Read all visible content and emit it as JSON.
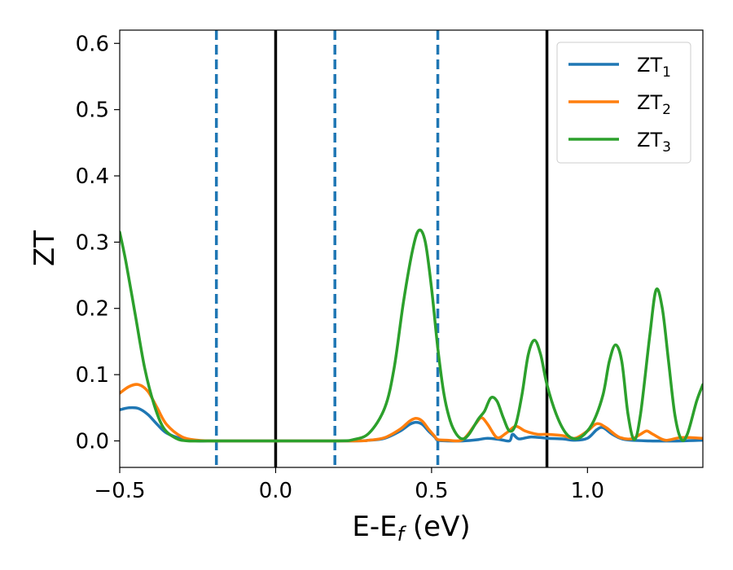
{
  "chart_data": {
    "type": "line",
    "title": "",
    "xlabel": "E-E",
    "xlabel_sub": "f",
    "xlabel_unit": " (eV)",
    "ylabel": "ZT",
    "xlim": [
      -0.5,
      1.37
    ],
    "ylim": [
      -0.04,
      0.62
    ],
    "x_ticks": [
      -0.5,
      0.0,
      0.5,
      1.0
    ],
    "x_tick_labels": [
      "−0.5",
      "0.0",
      "0.5",
      "1.0"
    ],
    "y_ticks": [
      0.0,
      0.1,
      0.2,
      0.3,
      0.4,
      0.5,
      0.6
    ],
    "y_tick_labels": [
      "0.0",
      "0.1",
      "0.2",
      "0.3",
      "0.4",
      "0.5",
      "0.6"
    ],
    "grid": false,
    "legend_position": "top-right",
    "vlines_solid": [
      0.0,
      0.87
    ],
    "vlines_dashed": [
      -0.19,
      0.19,
      0.52
    ],
    "series": [
      {
        "name": "ZT",
        "name_sub": "1",
        "color": "#1f77b4",
        "points": [
          [
            -0.5,
            0.047
          ],
          [
            -0.47,
            0.05
          ],
          [
            -0.44,
            0.049
          ],
          [
            -0.41,
            0.04
          ],
          [
            -0.38,
            0.025
          ],
          [
            -0.35,
            0.012
          ],
          [
            -0.3,
            0.003
          ],
          [
            -0.25,
            0.0
          ],
          [
            -0.2,
            0.0
          ],
          [
            0.0,
            0.0
          ],
          [
            0.25,
            0.0
          ],
          [
            0.3,
            0.001
          ],
          [
            0.35,
            0.004
          ],
          [
            0.4,
            0.015
          ],
          [
            0.43,
            0.025
          ],
          [
            0.45,
            0.028
          ],
          [
            0.47,
            0.025
          ],
          [
            0.49,
            0.015
          ],
          [
            0.51,
            0.006
          ],
          [
            0.52,
            0.001
          ],
          [
            0.55,
            0.0
          ],
          [
            0.6,
            0.0
          ],
          [
            0.65,
            0.002
          ],
          [
            0.68,
            0.004
          ],
          [
            0.72,
            0.002
          ],
          [
            0.75,
            0.0
          ],
          [
            0.76,
            0.01
          ],
          [
            0.78,
            0.003
          ],
          [
            0.82,
            0.006
          ],
          [
            0.87,
            0.004
          ],
          [
            0.92,
            0.003
          ],
          [
            0.96,
            0.001
          ],
          [
            1.0,
            0.004
          ],
          [
            1.03,
            0.017
          ],
          [
            1.05,
            0.02
          ],
          [
            1.08,
            0.01
          ],
          [
            1.12,
            0.002
          ],
          [
            1.2,
            0.0
          ],
          [
            1.3,
            0.0
          ],
          [
            1.37,
            0.001
          ]
        ]
      },
      {
        "name": "ZT",
        "name_sub": "2",
        "color": "#ff7f0e",
        "points": [
          [
            -0.5,
            0.072
          ],
          [
            -0.47,
            0.082
          ],
          [
            -0.44,
            0.085
          ],
          [
            -0.41,
            0.075
          ],
          [
            -0.38,
            0.05
          ],
          [
            -0.35,
            0.025
          ],
          [
            -0.3,
            0.006
          ],
          [
            -0.25,
            0.001
          ],
          [
            -0.2,
            0.0
          ],
          [
            0.0,
            0.0
          ],
          [
            0.25,
            0.0
          ],
          [
            0.3,
            0.001
          ],
          [
            0.35,
            0.005
          ],
          [
            0.4,
            0.018
          ],
          [
            0.43,
            0.03
          ],
          [
            0.45,
            0.034
          ],
          [
            0.47,
            0.03
          ],
          [
            0.49,
            0.018
          ],
          [
            0.51,
            0.007
          ],
          [
            0.52,
            0.002
          ],
          [
            0.55,
            0.001
          ],
          [
            0.6,
            0.002
          ],
          [
            0.64,
            0.025
          ],
          [
            0.66,
            0.035
          ],
          [
            0.68,
            0.025
          ],
          [
            0.71,
            0.005
          ],
          [
            0.74,
            0.012
          ],
          [
            0.77,
            0.022
          ],
          [
            0.8,
            0.015
          ],
          [
            0.84,
            0.01
          ],
          [
            0.87,
            0.01
          ],
          [
            0.92,
            0.008
          ],
          [
            0.96,
            0.004
          ],
          [
            1.0,
            0.015
          ],
          [
            1.03,
            0.026
          ],
          [
            1.06,
            0.02
          ],
          [
            1.1,
            0.006
          ],
          [
            1.14,
            0.003
          ],
          [
            1.17,
            0.01
          ],
          [
            1.19,
            0.015
          ],
          [
            1.21,
            0.01
          ],
          [
            1.25,
            0.001
          ],
          [
            1.3,
            0.005
          ],
          [
            1.37,
            0.004
          ]
        ]
      },
      {
        "name": "ZT",
        "name_sub": "3",
        "color": "#2ca02c",
        "points": [
          [
            -0.5,
            0.315
          ],
          [
            -0.48,
            0.27
          ],
          [
            -0.45,
            0.19
          ],
          [
            -0.42,
            0.11
          ],
          [
            -0.39,
            0.055
          ],
          [
            -0.36,
            0.02
          ],
          [
            -0.32,
            0.004
          ],
          [
            -0.28,
            0.0
          ],
          [
            -0.2,
            0.0
          ],
          [
            0.0,
            0.0
          ],
          [
            0.2,
            0.0
          ],
          [
            0.25,
            0.002
          ],
          [
            0.3,
            0.012
          ],
          [
            0.35,
            0.05
          ],
          [
            0.38,
            0.11
          ],
          [
            0.41,
            0.21
          ],
          [
            0.44,
            0.29
          ],
          [
            0.46,
            0.318
          ],
          [
            0.48,
            0.3
          ],
          [
            0.5,
            0.23
          ],
          [
            0.52,
            0.14
          ],
          [
            0.54,
            0.07
          ],
          [
            0.56,
            0.03
          ],
          [
            0.58,
            0.01
          ],
          [
            0.6,
            0.003
          ],
          [
            0.62,
            0.01
          ],
          [
            0.65,
            0.033
          ],
          [
            0.67,
            0.045
          ],
          [
            0.69,
            0.065
          ],
          [
            0.71,
            0.06
          ],
          [
            0.73,
            0.035
          ],
          [
            0.75,
            0.015
          ],
          [
            0.77,
            0.025
          ],
          [
            0.79,
            0.07
          ],
          [
            0.81,
            0.13
          ],
          [
            0.83,
            0.152
          ],
          [
            0.85,
            0.13
          ],
          [
            0.87,
            0.085
          ],
          [
            0.9,
            0.04
          ],
          [
            0.93,
            0.012
          ],
          [
            0.96,
            0.003
          ],
          [
            0.99,
            0.01
          ],
          [
            1.02,
            0.03
          ],
          [
            1.05,
            0.07
          ],
          [
            1.07,
            0.12
          ],
          [
            1.09,
            0.145
          ],
          [
            1.11,
            0.12
          ],
          [
            1.13,
            0.04
          ],
          [
            1.15,
            0.002
          ],
          [
            1.17,
            0.04
          ],
          [
            1.2,
            0.16
          ],
          [
            1.22,
            0.228
          ],
          [
            1.24,
            0.2
          ],
          [
            1.26,
            0.12
          ],
          [
            1.28,
            0.04
          ],
          [
            1.3,
            0.003
          ],
          [
            1.32,
            0.01
          ],
          [
            1.35,
            0.06
          ],
          [
            1.37,
            0.085
          ]
        ]
      }
    ]
  }
}
